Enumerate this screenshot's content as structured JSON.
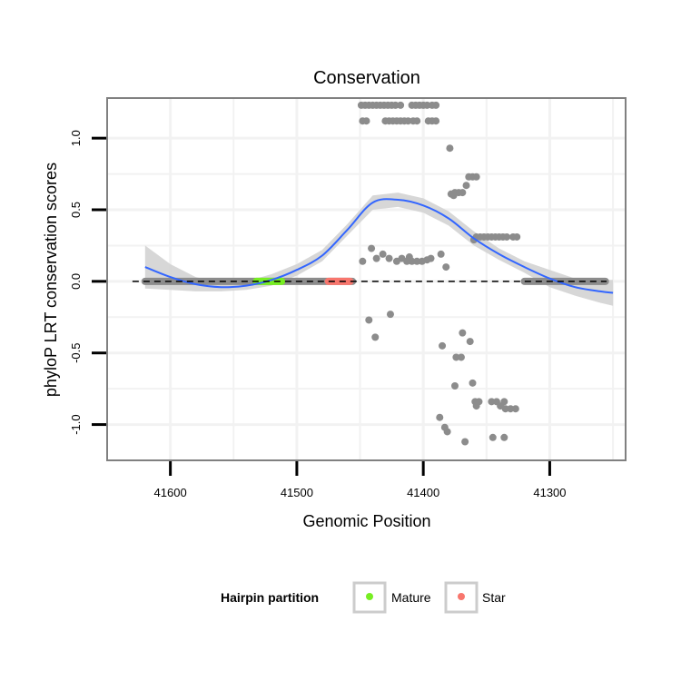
{
  "chart_data": {
    "type": "scatter",
    "title": "Conservation",
    "xlabel": "Genomic Position",
    "ylabel": "phyloP LRT conservation scores",
    "x_reversed": true,
    "xlim": [
      41650,
      41240
    ],
    "ylim": [
      -1.25,
      1.28
    ],
    "x_ticks": [
      41600,
      41500,
      41400,
      41300
    ],
    "y_ticks": [
      -1.0,
      -0.5,
      0.0,
      0.5,
      1.0
    ],
    "x_tick_labels": [
      "41600",
      "41500",
      "41400",
      "41300"
    ],
    "y_tick_labels": [
      "-1.0",
      "-0.5",
      "0.0",
      "0.5",
      "1.0"
    ],
    "reference_line": {
      "y": 0,
      "style": "dashed",
      "color": "#000000"
    },
    "colors": {
      "points": "#8c8c8c",
      "smooth_line": "#3366ff",
      "smooth_ribbon": "#d3d3d3",
      "mature": "#77ee22",
      "star": "#f8766d",
      "panel_border": "#808080",
      "grid": "#f2f2f2"
    },
    "baseline_segments": [
      {
        "name": "zero-scores-left",
        "x_from": 41620,
        "x_to": 41456,
        "y": 0.0
      },
      {
        "name": "zero-scores-right",
        "x_from": 41320,
        "x_to": 41256,
        "y": 0.0
      }
    ],
    "highlight_segments": [
      {
        "name": "Mature",
        "x_from": 41532,
        "x_to": 41512,
        "y": 0.0
      },
      {
        "name": "Star",
        "x_from": 41475,
        "x_to": 41458,
        "y": 0.0
      }
    ],
    "points": [
      {
        "x": 41449,
        "y": 1.23
      },
      {
        "x": 41446,
        "y": 1.23
      },
      {
        "x": 41443,
        "y": 1.23
      },
      {
        "x": 41440,
        "y": 1.23
      },
      {
        "x": 41437,
        "y": 1.23
      },
      {
        "x": 41434,
        "y": 1.23
      },
      {
        "x": 41431,
        "y": 1.23
      },
      {
        "x": 41428,
        "y": 1.23
      },
      {
        "x": 41425,
        "y": 1.23
      },
      {
        "x": 41422,
        "y": 1.23
      },
      {
        "x": 41418,
        "y": 1.23
      },
      {
        "x": 41409,
        "y": 1.23
      },
      {
        "x": 41406,
        "y": 1.23
      },
      {
        "x": 41403,
        "y": 1.23
      },
      {
        "x": 41400,
        "y": 1.23
      },
      {
        "x": 41397,
        "y": 1.23
      },
      {
        "x": 41393,
        "y": 1.23
      },
      {
        "x": 41390,
        "y": 1.23
      },
      {
        "x": 41448,
        "y": 1.12
      },
      {
        "x": 41445,
        "y": 1.12
      },
      {
        "x": 41430,
        "y": 1.12
      },
      {
        "x": 41427,
        "y": 1.12
      },
      {
        "x": 41424,
        "y": 1.12
      },
      {
        "x": 41421,
        "y": 1.12
      },
      {
        "x": 41418,
        "y": 1.12
      },
      {
        "x": 41415,
        "y": 1.12
      },
      {
        "x": 41412,
        "y": 1.12
      },
      {
        "x": 41408,
        "y": 1.12
      },
      {
        "x": 41405,
        "y": 1.12
      },
      {
        "x": 41396,
        "y": 1.12
      },
      {
        "x": 41393,
        "y": 1.12
      },
      {
        "x": 41390,
        "y": 1.12
      },
      {
        "x": 41379,
        "y": 0.93
      },
      {
        "x": 41364,
        "y": 0.73
      },
      {
        "x": 41361,
        "y": 0.73
      },
      {
        "x": 41358,
        "y": 0.73
      },
      {
        "x": 41366,
        "y": 0.67
      },
      {
        "x": 41378,
        "y": 0.61
      },
      {
        "x": 41375,
        "y": 0.62
      },
      {
        "x": 41372,
        "y": 0.62
      },
      {
        "x": 41369,
        "y": 0.62
      },
      {
        "x": 41376,
        "y": 0.6
      },
      {
        "x": 41358,
        "y": 0.31
      },
      {
        "x": 41355,
        "y": 0.31
      },
      {
        "x": 41352,
        "y": 0.31
      },
      {
        "x": 41349,
        "y": 0.31
      },
      {
        "x": 41346,
        "y": 0.31
      },
      {
        "x": 41343,
        "y": 0.31
      },
      {
        "x": 41340,
        "y": 0.31
      },
      {
        "x": 41337,
        "y": 0.31
      },
      {
        "x": 41334,
        "y": 0.31
      },
      {
        "x": 41329,
        "y": 0.31
      },
      {
        "x": 41326,
        "y": 0.31
      },
      {
        "x": 41360,
        "y": 0.29
      },
      {
        "x": 41441,
        "y": 0.23
      },
      {
        "x": 41432,
        "y": 0.19
      },
      {
        "x": 41437,
        "y": 0.16
      },
      {
        "x": 41427,
        "y": 0.16
      },
      {
        "x": 41421,
        "y": 0.14
      },
      {
        "x": 41417,
        "y": 0.16
      },
      {
        "x": 41413,
        "y": 0.14
      },
      {
        "x": 41409,
        "y": 0.14
      },
      {
        "x": 41405,
        "y": 0.14
      },
      {
        "x": 41401,
        "y": 0.14
      },
      {
        "x": 41397,
        "y": 0.15
      },
      {
        "x": 41394,
        "y": 0.16
      },
      {
        "x": 41386,
        "y": 0.19
      },
      {
        "x": 41382,
        "y": 0.1
      },
      {
        "x": 41448,
        "y": 0.14
      },
      {
        "x": 41411,
        "y": 0.17
      },
      {
        "x": 41443,
        "y": -0.27
      },
      {
        "x": 41426,
        "y": -0.23
      },
      {
        "x": 41438,
        "y": -0.39
      },
      {
        "x": 41369,
        "y": -0.36
      },
      {
        "x": 41363,
        "y": -0.42
      },
      {
        "x": 41385,
        "y": -0.45
      },
      {
        "x": 41374,
        "y": -0.53
      },
      {
        "x": 41370,
        "y": -0.53
      },
      {
        "x": 41361,
        "y": -0.71
      },
      {
        "x": 41375,
        "y": -0.73
      },
      {
        "x": 41359,
        "y": -0.84
      },
      {
        "x": 41356,
        "y": -0.84
      },
      {
        "x": 41346,
        "y": -0.84
      },
      {
        "x": 41342,
        "y": -0.84
      },
      {
        "x": 41336,
        "y": -0.84
      },
      {
        "x": 41339,
        "y": -0.87
      },
      {
        "x": 41335,
        "y": -0.89
      },
      {
        "x": 41331,
        "y": -0.89
      },
      {
        "x": 41327,
        "y": -0.89
      },
      {
        "x": 41358,
        "y": -0.87
      },
      {
        "x": 41387,
        "y": -0.95
      },
      {
        "x": 41383,
        "y": -1.02
      },
      {
        "x": 41381,
        "y": -1.05
      },
      {
        "x": 41367,
        "y": -1.12
      },
      {
        "x": 41345,
        "y": -1.09
      },
      {
        "x": 41336,
        "y": -1.09
      }
    ],
    "smooth": {
      "x": [
        41620,
        41600,
        41580,
        41560,
        41540,
        41520,
        41500,
        41480,
        41460,
        41440,
        41420,
        41400,
        41380,
        41360,
        41340,
        41320,
        41300,
        41280,
        41260,
        41250
      ],
      "y": [
        0.1,
        0.03,
        -0.02,
        -0.04,
        -0.03,
        0.01,
        0.08,
        0.18,
        0.36,
        0.55,
        0.57,
        0.53,
        0.44,
        0.3,
        0.19,
        0.1,
        0.02,
        -0.04,
        -0.07,
        -0.08
      ],
      "lo": [
        -0.05,
        -0.06,
        -0.07,
        -0.07,
        -0.06,
        -0.03,
        0.04,
        0.14,
        0.32,
        0.5,
        0.52,
        0.48,
        0.39,
        0.25,
        0.15,
        0.06,
        -0.04,
        -0.1,
        -0.15,
        -0.17
      ],
      "hi": [
        0.25,
        0.12,
        0.03,
        -0.01,
        0.0,
        0.05,
        0.12,
        0.22,
        0.4,
        0.6,
        0.62,
        0.58,
        0.49,
        0.35,
        0.23,
        0.14,
        0.08,
        0.02,
        0.01,
        0.01
      ]
    },
    "legend": {
      "title": "Hairpin partition",
      "position": "bottom",
      "entries": [
        {
          "label": "Mature",
          "color": "#77ee22"
        },
        {
          "label": "Star",
          "color": "#f8766d"
        }
      ]
    }
  }
}
